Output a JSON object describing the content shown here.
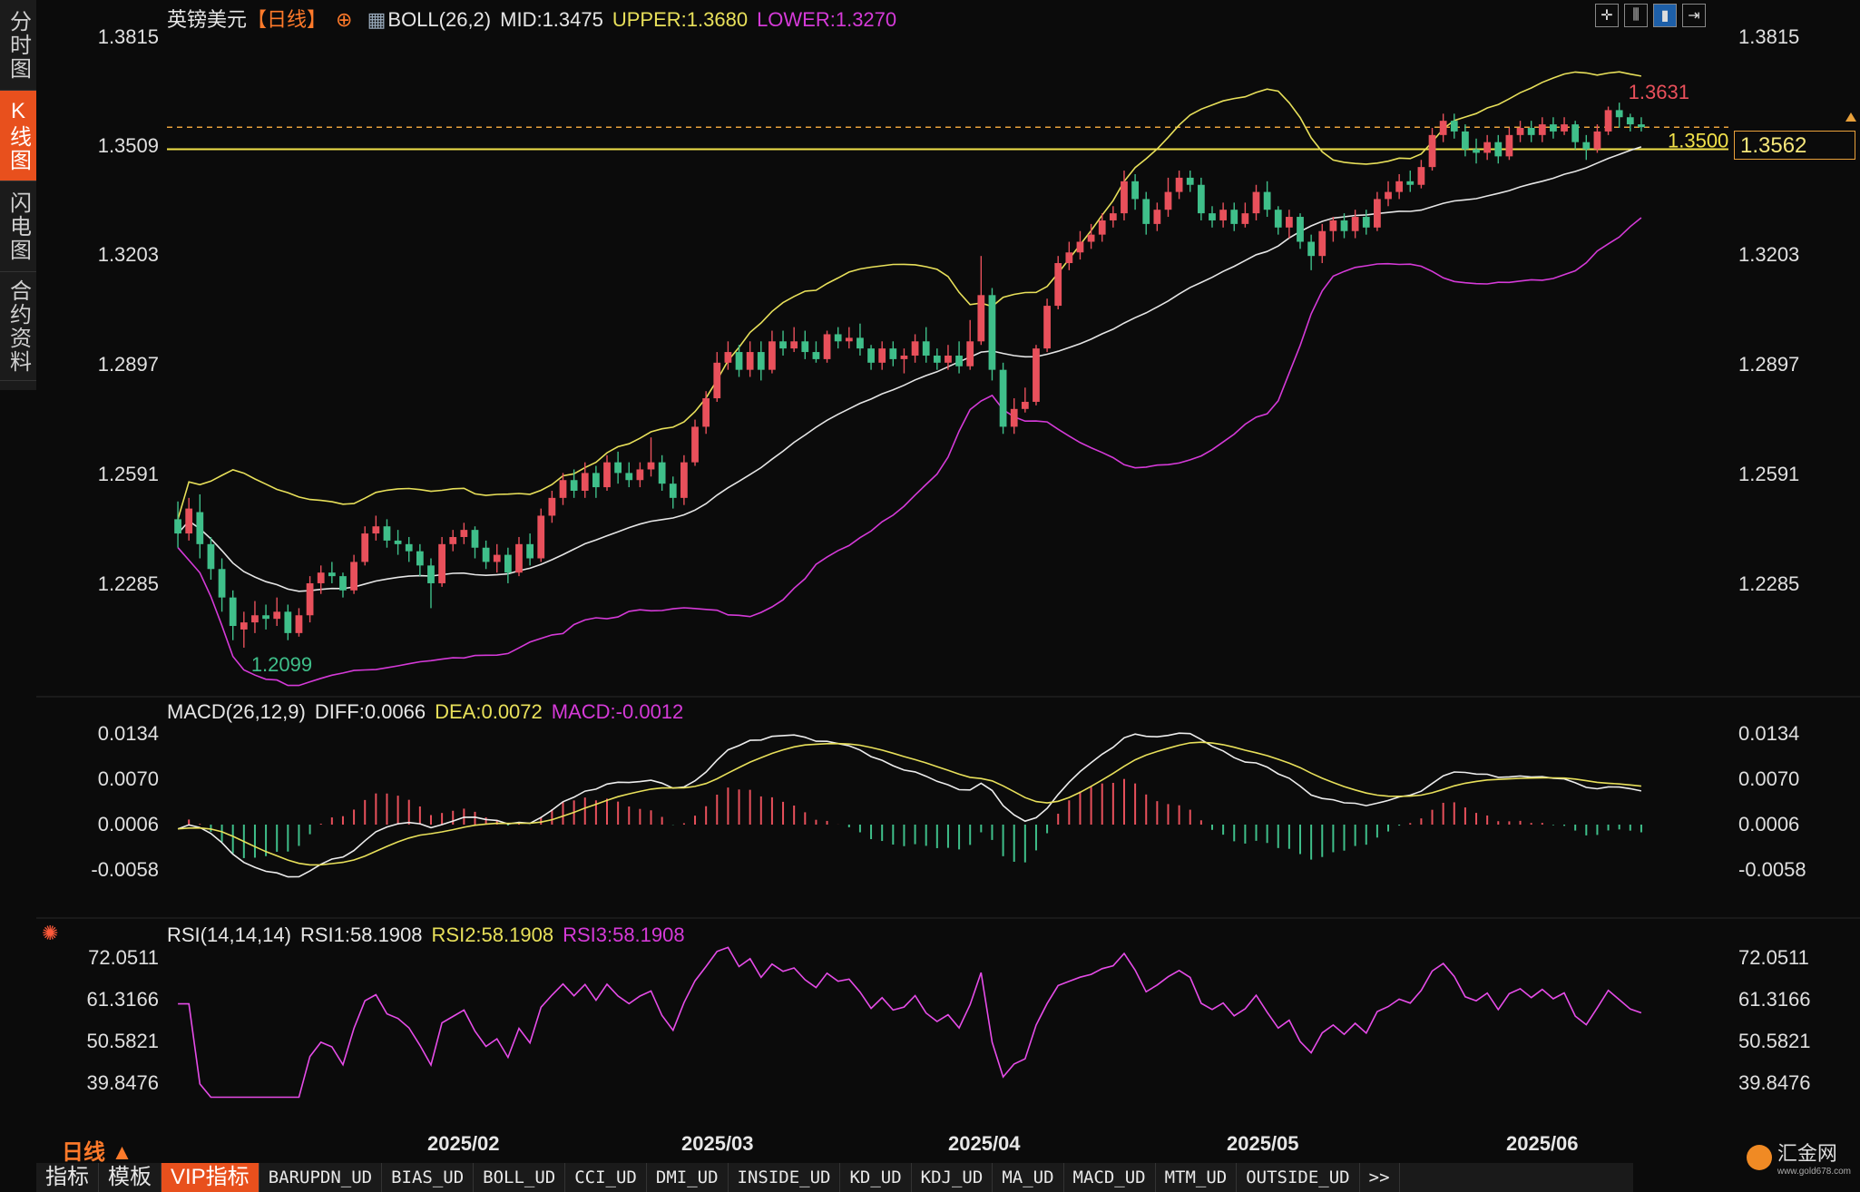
{
  "left_tabs": [
    "分时图",
    "K线图",
    "闪电图",
    "合约资料"
  ],
  "active_tab": "K线图",
  "header": {
    "symbol": "英镑美元",
    "period_tag": "【日线】",
    "add_icon": "plus-circle-icon",
    "boll": "BOLL(26,2)",
    "mid": "MID:1.3475",
    "upper": "UPPER:1.3680",
    "lower": "LOWER:1.3270"
  },
  "toolbar_icons": [
    "crosshair-icon",
    "bars-icon",
    "candle-icon",
    "export-icon"
  ],
  "price_axis": {
    "ticks": [
      "1.3815",
      "1.3509",
      "1.3203",
      "1.2897",
      "1.2591",
      "1.2285"
    ],
    "max_label": "1.3631",
    "min_label": "1.2099",
    "reference_label": "1.3500",
    "current_price": "1.3562"
  },
  "macd": {
    "title": "MACD(26,12,9)",
    "diff": "DIFF:0.0066",
    "dea": "DEA:0.0072",
    "macd": "MACD:-0.0012",
    "ticks": [
      "0.0134",
      "0.0070",
      "0.0006",
      "-0.0058"
    ]
  },
  "rsi": {
    "title": "RSI(14,14,14)",
    "rsi1": "RSI1:58.1908",
    "rsi2": "RSI2:58.1908",
    "rsi3": "RSI3:58.1908",
    "ticks": [
      "72.0511",
      "61.3166",
      "50.5821",
      "39.8476"
    ]
  },
  "x_axis": [
    "2025/02",
    "2025/03",
    "2025/04",
    "2025/05",
    "2025/06"
  ],
  "period_label": "日线 ▲",
  "bottom_tabs": [
    "指标",
    "模板",
    "VIP指标",
    "BARUPDN_UD",
    "BIAS_UD",
    "BOLL_UD",
    "CCI_UD",
    "DMI_UD",
    "INSIDE_UD",
    "KD_UD",
    "KDJ_UD",
    "MA_UD",
    "MACD_UD",
    "MTM_UD",
    "OUTSIDE_UD",
    ">>"
  ],
  "logo": {
    "name": "汇金网",
    "site": "www.gold678.com"
  },
  "colors": {
    "up": "#e8505b",
    "down": "#3fbf8a",
    "boll_upper": "#e8e05a",
    "boll_mid": "#e6e6e6",
    "boll_lower": "#d53ad8",
    "ref_line": "#f2e24a",
    "accent": "#e8501d"
  },
  "chart_data": {
    "type": "candlestick",
    "price_range": [
      1.2099,
      1.3631
    ],
    "candles": [
      [
        1.246,
        1.242,
        1.251,
        1.238
      ],
      [
        1.242,
        1.249,
        1.252,
        1.24
      ],
      [
        1.248,
        1.239,
        1.253,
        1.235
      ],
      [
        1.239,
        1.232,
        1.241,
        1.229
      ],
      [
        1.232,
        1.224,
        1.235,
        1.22
      ],
      [
        1.224,
        1.216,
        1.226,
        1.212
      ],
      [
        1.215,
        1.217,
        1.22,
        1.2099
      ],
      [
        1.217,
        1.219,
        1.223,
        1.214
      ],
      [
        1.219,
        1.218,
        1.222,
        1.215
      ],
      [
        1.218,
        1.22,
        1.224,
        1.216
      ],
      [
        1.22,
        1.214,
        1.222,
        1.212
      ],
      [
        1.214,
        1.219,
        1.221,
        1.213
      ],
      [
        1.219,
        1.228,
        1.23,
        1.217
      ],
      [
        1.228,
        1.231,
        1.233,
        1.225
      ],
      [
        1.231,
        1.23,
        1.234,
        1.228
      ],
      [
        1.23,
        1.226,
        1.231,
        1.224
      ],
      [
        1.226,
        1.234,
        1.236,
        1.225
      ],
      [
        1.234,
        1.242,
        1.244,
        1.233
      ],
      [
        1.242,
        1.244,
        1.247,
        1.24
      ],
      [
        1.244,
        1.24,
        1.246,
        1.238
      ],
      [
        1.24,
        1.239,
        1.243,
        1.236
      ],
      [
        1.239,
        1.237,
        1.241,
        1.234
      ],
      [
        1.237,
        1.233,
        1.239,
        1.23
      ],
      [
        1.233,
        1.228,
        1.235,
        1.221
      ],
      [
        1.228,
        1.239,
        1.241,
        1.227
      ],
      [
        1.239,
        1.241,
        1.243,
        1.237
      ],
      [
        1.241,
        1.243,
        1.245,
        1.239
      ],
      [
        1.243,
        1.238,
        1.244,
        1.235
      ],
      [
        1.238,
        1.234,
        1.24,
        1.232
      ],
      [
        1.234,
        1.236,
        1.239,
        1.231
      ],
      [
        1.236,
        1.231,
        1.238,
        1.228
      ],
      [
        1.231,
        1.239,
        1.241,
        1.23
      ],
      [
        1.239,
        1.235,
        1.242,
        1.233
      ],
      [
        1.235,
        1.247,
        1.249,
        1.234
      ],
      [
        1.247,
        1.252,
        1.254,
        1.245
      ],
      [
        1.252,
        1.257,
        1.259,
        1.25
      ],
      [
        1.257,
        1.254,
        1.26,
        1.252
      ],
      [
        1.254,
        1.259,
        1.262,
        1.252
      ],
      [
        1.259,
        1.255,
        1.261,
        1.252
      ],
      [
        1.255,
        1.262,
        1.264,
        1.254
      ],
      [
        1.262,
        1.259,
        1.265,
        1.256
      ],
      [
        1.259,
        1.257,
        1.262,
        1.255
      ],
      [
        1.257,
        1.26,
        1.262,
        1.255
      ],
      [
        1.26,
        1.262,
        1.269,
        1.258
      ],
      [
        1.262,
        1.256,
        1.264,
        1.254
      ],
      [
        1.256,
        1.252,
        1.258,
        1.249
      ],
      [
        1.252,
        1.262,
        1.264,
        1.25
      ],
      [
        1.262,
        1.272,
        1.274,
        1.261
      ],
      [
        1.272,
        1.28,
        1.282,
        1.27
      ],
      [
        1.28,
        1.29,
        1.293,
        1.279
      ],
      [
        1.29,
        1.293,
        1.296,
        1.288
      ],
      [
        1.293,
        1.288,
        1.295,
        1.286
      ],
      [
        1.288,
        1.293,
        1.296,
        1.286
      ],
      [
        1.293,
        1.288,
        1.296,
        1.285
      ],
      [
        1.288,
        1.296,
        1.299,
        1.287
      ],
      [
        1.296,
        1.294,
        1.299,
        1.292
      ],
      [
        1.294,
        1.296,
        1.3,
        1.293
      ],
      [
        1.296,
        1.293,
        1.299,
        1.291
      ],
      [
        1.293,
        1.291,
        1.296,
        1.29
      ],
      [
        1.291,
        1.298,
        1.299,
        1.29
      ],
      [
        1.298,
        1.296,
        1.3,
        1.294
      ],
      [
        1.296,
        1.297,
        1.3,
        1.294
      ],
      [
        1.297,
        1.294,
        1.301,
        1.292
      ],
      [
        1.294,
        1.29,
        1.295,
        1.288
      ],
      [
        1.29,
        1.294,
        1.296,
        1.288
      ],
      [
        1.294,
        1.291,
        1.296,
        1.289
      ],
      [
        1.291,
        1.292,
        1.294,
        1.287
      ],
      [
        1.292,
        1.296,
        1.298,
        1.29
      ],
      [
        1.296,
        1.292,
        1.3,
        1.29
      ],
      [
        1.292,
        1.29,
        1.294,
        1.288
      ],
      [
        1.29,
        1.292,
        1.295,
        1.288
      ],
      [
        1.292,
        1.289,
        1.296,
        1.287
      ],
      [
        1.289,
        1.296,
        1.302,
        1.288
      ],
      [
        1.296,
        1.309,
        1.32,
        1.295
      ],
      [
        1.309,
        1.288,
        1.311,
        1.285
      ],
      [
        1.288,
        1.272,
        1.29,
        1.27
      ],
      [
        1.272,
        1.277,
        1.28,
        1.27
      ],
      [
        1.277,
        1.279,
        1.283,
        1.276
      ],
      [
        1.279,
        1.294,
        1.295,
        1.278
      ],
      [
        1.294,
        1.306,
        1.308,
        1.293
      ],
      [
        1.306,
        1.318,
        1.32,
        1.305
      ],
      [
        1.318,
        1.321,
        1.324,
        1.316
      ],
      [
        1.321,
        1.324,
        1.327,
        1.319
      ],
      [
        1.324,
        1.326,
        1.329,
        1.322
      ],
      [
        1.326,
        1.33,
        1.332,
        1.324
      ],
      [
        1.33,
        1.332,
        1.334,
        1.328
      ],
      [
        1.332,
        1.341,
        1.344,
        1.33
      ],
      [
        1.341,
        1.336,
        1.343,
        1.333
      ],
      [
        1.336,
        1.329,
        1.338,
        1.326
      ],
      [
        1.329,
        1.333,
        1.335,
        1.327
      ],
      [
        1.333,
        1.338,
        1.342,
        1.331
      ],
      [
        1.338,
        1.342,
        1.344,
        1.336
      ],
      [
        1.342,
        1.34,
        1.344,
        1.338
      ],
      [
        1.34,
        1.332,
        1.342,
        1.33
      ],
      [
        1.332,
        1.33,
        1.334,
        1.328
      ],
      [
        1.33,
        1.333,
        1.335,
        1.328
      ],
      [
        1.333,
        1.329,
        1.335,
        1.327
      ],
      [
        1.329,
        1.332,
        1.335,
        1.328
      ],
      [
        1.332,
        1.338,
        1.34,
        1.33
      ],
      [
        1.338,
        1.333,
        1.341,
        1.331
      ],
      [
        1.333,
        1.328,
        1.334,
        1.326
      ],
      [
        1.328,
        1.331,
        1.333,
        1.325
      ],
      [
        1.331,
        1.324,
        1.332,
        1.322
      ],
      [
        1.324,
        1.32,
        1.326,
        1.316
      ],
      [
        1.32,
        1.327,
        1.329,
        1.318
      ],
      [
        1.327,
        1.33,
        1.331,
        1.324
      ],
      [
        1.33,
        1.327,
        1.332,
        1.325
      ],
      [
        1.327,
        1.331,
        1.333,
        1.325
      ],
      [
        1.331,
        1.328,
        1.333,
        1.326
      ],
      [
        1.328,
        1.336,
        1.338,
        1.327
      ],
      [
        1.336,
        1.338,
        1.341,
        1.334
      ],
      [
        1.338,
        1.341,
        1.343,
        1.336
      ],
      [
        1.341,
        1.34,
        1.344,
        1.338
      ],
      [
        1.34,
        1.345,
        1.347,
        1.339
      ],
      [
        1.345,
        1.354,
        1.356,
        1.344
      ],
      [
        1.354,
        1.358,
        1.36,
        1.352
      ],
      [
        1.358,
        1.355,
        1.36,
        1.353
      ],
      [
        1.355,
        1.35,
        1.357,
        1.348
      ],
      [
        1.35,
        1.349,
        1.353,
        1.346
      ],
      [
        1.349,
        1.352,
        1.354,
        1.347
      ],
      [
        1.352,
        1.348,
        1.354,
        1.346
      ],
      [
        1.348,
        1.354,
        1.356,
        1.347
      ],
      [
        1.354,
        1.356,
        1.358,
        1.352
      ],
      [
        1.356,
        1.354,
        1.358,
        1.352
      ],
      [
        1.354,
        1.357,
        1.359,
        1.352
      ],
      [
        1.357,
        1.355,
        1.359,
        1.353
      ],
      [
        1.355,
        1.357,
        1.359,
        1.354
      ],
      [
        1.357,
        1.352,
        1.358,
        1.35
      ],
      [
        1.352,
        1.35,
        1.354,
        1.347
      ],
      [
        1.35,
        1.355,
        1.357,
        1.349
      ],
      [
        1.355,
        1.361,
        1.362,
        1.354
      ],
      [
        1.361,
        1.359,
        1.3631,
        1.356
      ],
      [
        1.359,
        1.357,
        1.36,
        1.355
      ],
      [
        1.357,
        1.3562,
        1.359,
        1.355
      ]
    ]
  }
}
